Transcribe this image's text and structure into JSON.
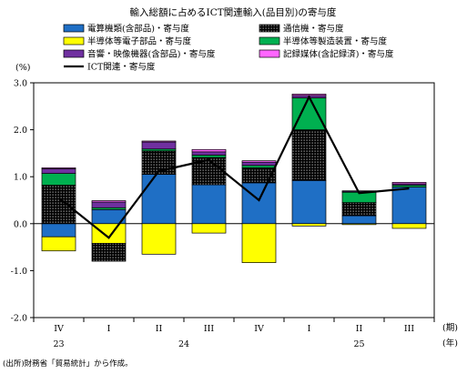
{
  "chart_data": {
    "type": "bar",
    "stacked": true,
    "title": "輸入総額に占めるICT関連輸入(品目別)の寄与度",
    "ylabel": "(%)",
    "ylim": [
      -2.0,
      3.0
    ],
    "yticks": [
      "3.0",
      "2.0",
      "1.0",
      "0.0",
      "-1.0",
      "-2.0"
    ],
    "ytick_values": [
      3.0,
      2.0,
      1.0,
      0.0,
      -1.0,
      -2.0
    ],
    "grid": false,
    "legend_position": "top",
    "categories": [
      "IV",
      "I",
      "II",
      "III",
      "IV",
      "I",
      "II",
      "III"
    ],
    "year_labels": [
      {
        "label": "23",
        "category_index": 0
      },
      {
        "label": "24",
        "category_index": 2.5
      },
      {
        "label": "25",
        "category_index": 6
      }
    ],
    "x_unit_labels": [
      "(期)",
      "(年)"
    ],
    "series": [
      {
        "name": "電算機類(含部品)・寄与度",
        "color": "#1f6fc5",
        "pattern": "none",
        "values": [
          -0.28,
          0.3,
          1.05,
          0.83,
          0.87,
          0.92,
          0.17,
          0.78
        ]
      },
      {
        "name": "半導体等電子部品・寄与度",
        "color": "#ffff00",
        "pattern": "none",
        "values": [
          -0.3,
          -0.42,
          -0.65,
          -0.2,
          -0.83,
          -0.05,
          -0.02,
          -0.1
        ]
      },
      {
        "name": "通信機・寄与度",
        "color": "#000000",
        "pattern": "dots",
        "values": [
          0.82,
          -0.38,
          0.5,
          0.58,
          0.32,
          1.08,
          0.28,
          0.0
        ]
      },
      {
        "name": "半導体等製造装置・寄与度",
        "color": "#00b050",
        "pattern": "none",
        "values": [
          0.25,
          0.04,
          0.04,
          0.05,
          0.05,
          0.68,
          0.22,
          0.04
        ]
      },
      {
        "name": "音響・映像機器(含部品)・寄与度",
        "color": "#7030a0",
        "pattern": "none",
        "values": [
          0.1,
          0.12,
          0.15,
          0.07,
          0.07,
          0.05,
          0.02,
          0.03
        ]
      },
      {
        "name": "記録媒体(含記録済)・寄与度",
        "color": "#ff66ff",
        "pattern": "none",
        "values": [
          0.02,
          0.03,
          0.02,
          0.05,
          0.03,
          0.03,
          0.01,
          0.03
        ]
      }
    ],
    "line": {
      "name": "ICT関連・寄与度",
      "color": "#000000",
      "values": [
        0.55,
        -0.3,
        1.12,
        1.36,
        0.5,
        2.7,
        0.65,
        0.75
      ]
    },
    "legend_order": [
      0,
      2,
      1,
      3,
      4,
      5,
      "line"
    ]
  },
  "source_note": "(出所)財務省「貿易統計」から作成。"
}
